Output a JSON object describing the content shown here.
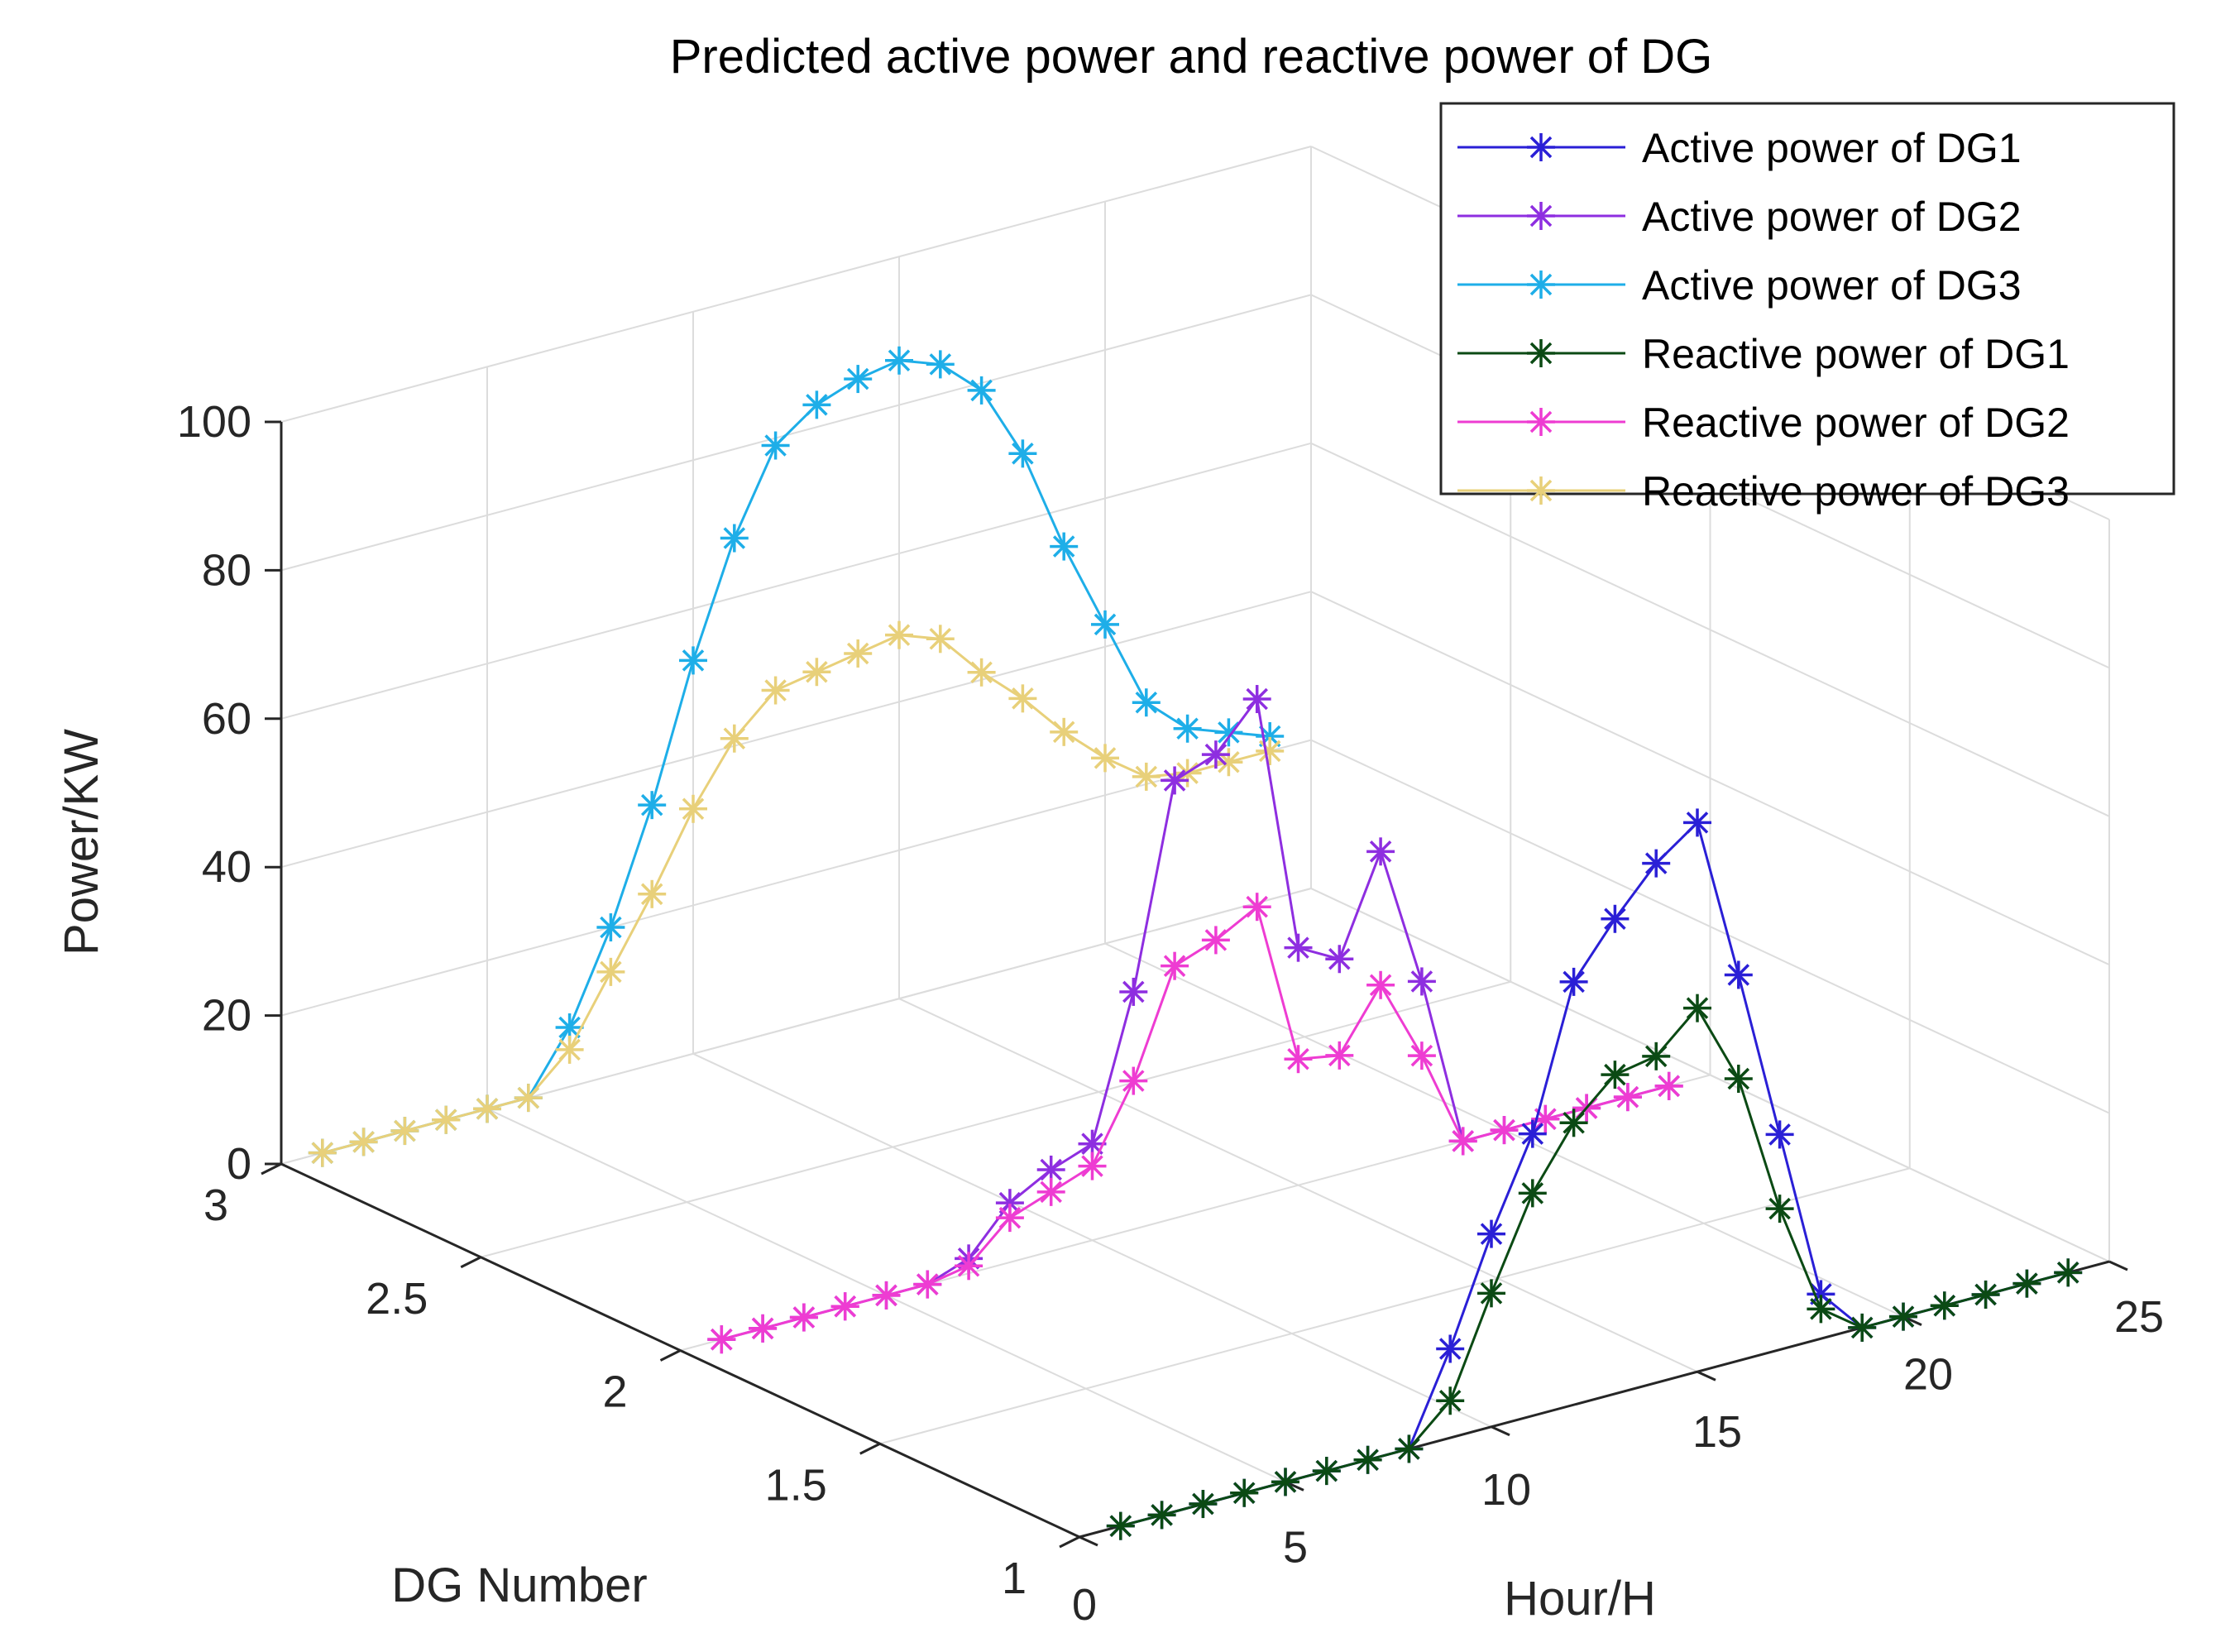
{
  "chart_data": {
    "type": "line3d",
    "title": "Predicted active power and reactive power of DG",
    "xlabel": "Hour/H",
    "ylabel": "DG Number",
    "zlabel": "Power/KW",
    "xlim": [
      0,
      25
    ],
    "ylim": [
      1,
      3
    ],
    "zlim": [
      0,
      100
    ],
    "xticks": [
      0,
      5,
      10,
      15,
      20,
      25
    ],
    "yticks": [
      1,
      1.5,
      2,
      2.5,
      3
    ],
    "zticks": [
      0,
      20,
      40,
      60,
      80,
      100
    ],
    "xtick_labels": [
      "0",
      "5",
      "10",
      "15",
      "20",
      "25"
    ],
    "ytick_labels": [
      "1",
      "1.5",
      "2",
      "2.5",
      "3"
    ],
    "ztick_labels": [
      "0",
      "20",
      "40",
      "60",
      "80",
      "100"
    ],
    "grid": true,
    "legend_position": "top-right",
    "x": [
      1,
      2,
      3,
      4,
      5,
      6,
      7,
      8,
      9,
      10,
      11,
      12,
      13,
      14,
      15,
      16,
      17,
      18,
      19,
      20,
      21,
      22,
      23,
      24
    ],
    "series": [
      {
        "name": "Active power of DG1",
        "dg": 1,
        "color": "#2a1fd6",
        "values": [
          0,
          0,
          0,
          0,
          0,
          0,
          0,
          0,
          12,
          26,
          38,
          57,
          64,
          70,
          74,
          52,
          29,
          6,
          0,
          0,
          0,
          0,
          0,
          0
        ]
      },
      {
        "name": "Active power of DG2",
        "dg": 2,
        "color": "#8e2ee0",
        "values": [
          0,
          0,
          0,
          0,
          0,
          0,
          2,
          8,
          11,
          13,
          32,
          59,
          61,
          67,
          32,
          29,
          42,
          23,
          0,
          0,
          0,
          0,
          0,
          0
        ]
      },
      {
        "name": "Active power of DG3",
        "dg": 3,
        "color": "#1eaee8",
        "values": [
          0,
          0,
          0,
          0,
          0,
          0,
          8,
          20,
          35,
          53,
          68,
          79,
          83,
          85,
          86,
          84,
          79,
          69,
          55,
          43,
          31,
          26,
          24,
          22
        ]
      },
      {
        "name": "Reactive power of DG1",
        "dg": 1,
        "color": "#0b4a14",
        "values": [
          0,
          0,
          0,
          0,
          0,
          0,
          0,
          0,
          5,
          18,
          30,
          38,
          43,
          44,
          49,
          38,
          19,
          4,
          0,
          0,
          0,
          0,
          0,
          0
        ]
      },
      {
        "name": "Reactive power of DG2",
        "dg": 2,
        "color": "#ee3cd2",
        "values": [
          0,
          0,
          0,
          0,
          0,
          0,
          1,
          6,
          8,
          10,
          20,
          34,
          36,
          39,
          17,
          16,
          24,
          13,
          0,
          0,
          0,
          0,
          0,
          0
        ]
      },
      {
        "name": "Reactive power of DG3",
        "dg": 3,
        "color": "#e8d07a",
        "values": [
          0,
          0,
          0,
          0,
          0,
          0,
          5,
          14,
          23,
          33,
          41,
          46,
          47,
          48,
          49,
          47,
          41,
          36,
          30,
          25,
          21,
          20,
          20,
          20
        ]
      }
    ]
  }
}
